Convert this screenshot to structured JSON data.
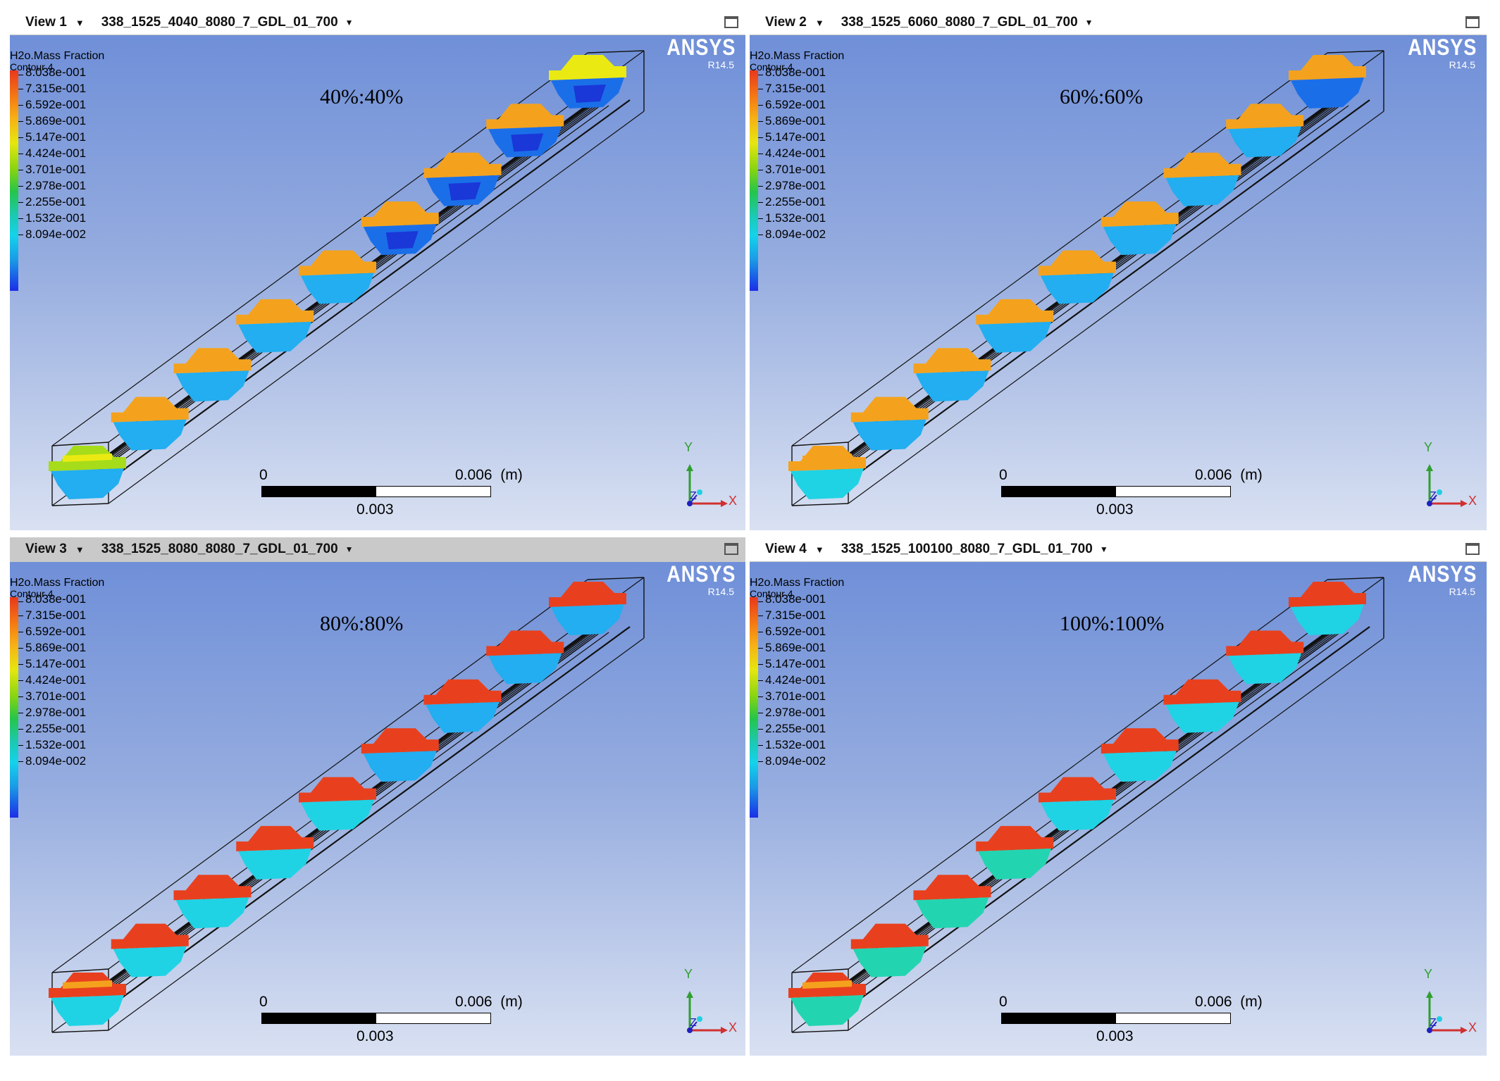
{
  "views": [
    {
      "name": "View 1",
      "title": "338_1525_4040_8080_7_GDL_01_700",
      "ratio": "40%:40%",
      "active": false
    },
    {
      "name": "View 2",
      "title": "338_1525_6060_8080_7_GDL_01_700",
      "ratio": "60%:60%",
      "active": false
    },
    {
      "name": "View 3",
      "title": "338_1525_8080_8080_7_GDL_01_700",
      "ratio": "80%:80%",
      "active": true
    },
    {
      "name": "View 4",
      "title": "338_1525_100100_8080_7_GDL_01_700",
      "ratio": "100%:100%",
      "active": false
    }
  ],
  "legend": {
    "variable": "H2o.Mass Fraction",
    "contour": "Contour 4",
    "ticks": [
      "8.038e-001",
      "7.315e-001",
      "6.592e-001",
      "5.869e-001",
      "5.147e-001",
      "4.424e-001",
      "3.701e-001",
      "2.978e-001",
      "2.255e-001",
      "1.532e-001",
      "8.094e-002"
    ]
  },
  "brand": {
    "logo": "ANSYS",
    "version": "R14.5"
  },
  "scale": {
    "zero": "0",
    "max": "0.006",
    "unit": "(m)",
    "mid": "0.003"
  },
  "axes": {
    "y": "Y",
    "x": "X",
    "z": "Z"
  },
  "colors": {
    "red": "#e8401e",
    "orange": "#f4a21d",
    "yellow": "#eaea12",
    "lime": "#a6dc1a",
    "cyan": "#1fd3e4",
    "teal": "#22d5b0",
    "lightblue": "#22aef0",
    "blue": "#1a6fe8",
    "darkblue": "#1a37d8"
  },
  "icons": [
    "maximize-icon",
    "dropdown-caret-icon",
    "axis-triad-icon"
  ]
}
